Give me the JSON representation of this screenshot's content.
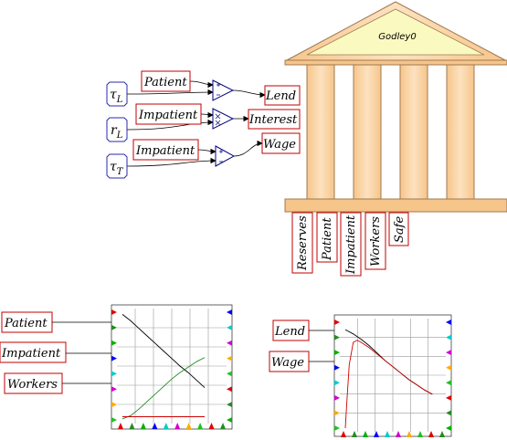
{
  "godley": {
    "title": "Godley0"
  },
  "godley_columns": [
    "Reserves",
    "Patient",
    "Impatient",
    "Workers",
    "Safe"
  ],
  "parameters": [
    {
      "id": "tau_L",
      "sym": "τ",
      "sub": "L"
    },
    {
      "id": "r_L",
      "sym": "r",
      "sub": "L"
    },
    {
      "id": "tau_T",
      "sym": "τ",
      "sub": "T"
    }
  ],
  "flow_vars": {
    "in1": "Patient",
    "in2": "Impatient",
    "in3": "Impatient",
    "out1": "Lend",
    "out2": "Interest",
    "out3": "Wage"
  },
  "plot1_inputs": [
    "Patient",
    "Impatient",
    "Workers"
  ],
  "plot2_inputs": [
    "Lend",
    "Wage"
  ],
  "chart_data": [
    {
      "type": "line",
      "title": "",
      "series": [
        {
          "color": "#000000",
          "x": [
            0,
            1,
            2,
            3,
            4,
            5,
            6,
            7,
            8,
            9,
            10
          ],
          "y": [
            98,
            92,
            85,
            78,
            71,
            64,
            57,
            50,
            44,
            37,
            30
          ]
        },
        {
          "color": "#228b22",
          "x": [
            0,
            1,
            2,
            3,
            4,
            5,
            6,
            7,
            8,
            9,
            10
          ],
          "y": [
            1,
            4,
            10,
            17,
            24,
            31,
            38,
            44,
            49,
            54,
            58
          ]
        },
        {
          "color": "#cc0000",
          "x": [
            0,
            2,
            4,
            6,
            8,
            10
          ],
          "y": [
            3,
            3,
            3,
            3,
            3,
            3
          ]
        }
      ],
      "xlim": [
        0,
        12
      ],
      "ylim": [
        0,
        100
      ]
    },
    {
      "type": "line",
      "title": "",
      "series": [
        {
          "color": "#000000",
          "x": [
            0,
            1,
            2,
            3,
            4,
            5,
            6,
            7,
            8,
            9,
            10,
            11
          ],
          "y": [
            93,
            89,
            84,
            78,
            71,
            64,
            58,
            52,
            46,
            41,
            36,
            32
          ]
        },
        {
          "color": "#cc0000",
          "x": [
            0,
            0.2,
            0.5,
            1,
            1.5,
            2,
            3,
            4,
            5,
            6,
            7,
            8,
            9,
            10,
            11
          ],
          "y": [
            0,
            25,
            60,
            81,
            83,
            81,
            76,
            70,
            64,
            58,
            52,
            46,
            41,
            36,
            32
          ]
        }
      ],
      "xlim": [
        0,
        12
      ],
      "ylim": [
        0,
        100
      ]
    }
  ],
  "colors": {
    "label_border": "#c00000",
    "param_border": "#2a2ab0",
    "godley_fill": "#f9cf9c",
    "godley_roof": "#fafac0",
    "op_stroke": "#000080"
  },
  "port_colors": [
    "#e00000",
    "#228b22",
    "#00b000",
    "#0000ff",
    "#00cccc",
    "#d000d0",
    "#ffaa00",
    "#20c020"
  ]
}
